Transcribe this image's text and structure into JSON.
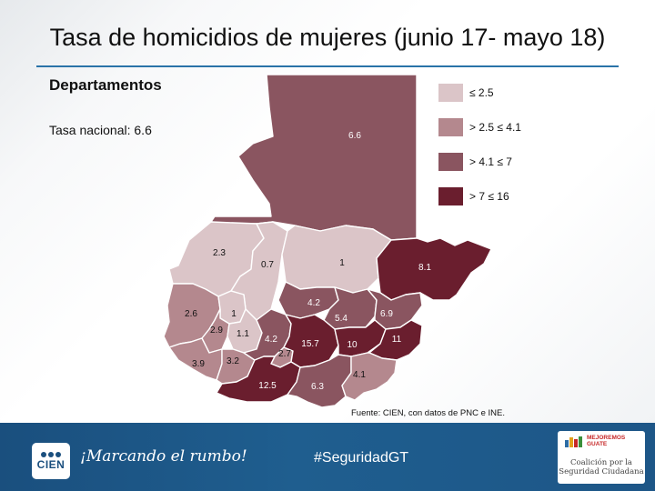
{
  "title": "Tasa de homicidios de mujeres (junio 17- mayo 18)",
  "subtitle": "Departamentos",
  "national_rate": "Tasa nacional: 6.6",
  "colors": {
    "class1": "#dbc5c8",
    "class2": "#b4888e",
    "class3": "#8a5560",
    "class4": "#6a1e2e",
    "title_rule": "#2a73a8",
    "footer": "#1f5e8f"
  },
  "legend": [
    {
      "label": "≤ 2.5",
      "color": "#dbc5c8"
    },
    {
      "label": "> 2.5 ≤ 4.1",
      "color": "#b4888e"
    },
    {
      "label": "> 4.1 ≤ 7",
      "color": "#8a5560"
    },
    {
      "label": "> 7  ≤ 16",
      "color": "#6a1e2e"
    }
  ],
  "departments": [
    {
      "id": "peten",
      "value": "6.6",
      "class": "class3"
    },
    {
      "id": "huehuetenango",
      "value": "2.3",
      "class": "class1"
    },
    {
      "id": "quiche",
      "value": "0.7",
      "class": "class1"
    },
    {
      "id": "alta-verapaz",
      "value": "1",
      "class": "class1"
    },
    {
      "id": "izabal",
      "value": "8.1",
      "class": "class4"
    },
    {
      "id": "san-marcos",
      "value": "2.6",
      "class": "class2"
    },
    {
      "id": "totonicapan",
      "value": "1",
      "class": "class1"
    },
    {
      "id": "quetzaltenango",
      "value": "2.9",
      "class": "class2"
    },
    {
      "id": "solola",
      "value": "1.1",
      "class": "class1"
    },
    {
      "id": "retalhuleu",
      "value": "3.9",
      "class": "class2"
    },
    {
      "id": "suchitepequez",
      "value": "3.2",
      "class": "class2"
    },
    {
      "id": "chimaltenango",
      "value": "4.2",
      "class": "class3"
    },
    {
      "id": "sacatepequez",
      "value": "2.7",
      "class": "class2"
    },
    {
      "id": "baja-verapaz",
      "value": "4.2",
      "class": "class3"
    },
    {
      "id": "el-progreso",
      "value": "5.4",
      "class": "class3"
    },
    {
      "id": "zacapa",
      "value": "6.9",
      "class": "class3"
    },
    {
      "id": "guatemala",
      "value": "15.7",
      "class": "class4"
    },
    {
      "id": "jalapa",
      "value": "10",
      "class": "class4"
    },
    {
      "id": "chiquimula",
      "value": "11",
      "class": "class4"
    },
    {
      "id": "escuintla",
      "value": "12.5",
      "class": "class4"
    },
    {
      "id": "santa-rosa",
      "value": "6.3",
      "class": "class3"
    },
    {
      "id": "jutiapa",
      "value": "4.1",
      "class": "class2"
    }
  ],
  "source": "Fuente: CIEN, con datos de PNC e INE.",
  "footer": {
    "logo_text": "CIEN",
    "slogan": "¡Marcando el rumbo!",
    "hashtag": "#SeguridadGT",
    "partner_brand_1": "MEJOREMOS",
    "partner_brand_2": "GUATE",
    "partner_name_1": "Coalición por la",
    "partner_name_2": "Seguridad Ciudadana"
  }
}
